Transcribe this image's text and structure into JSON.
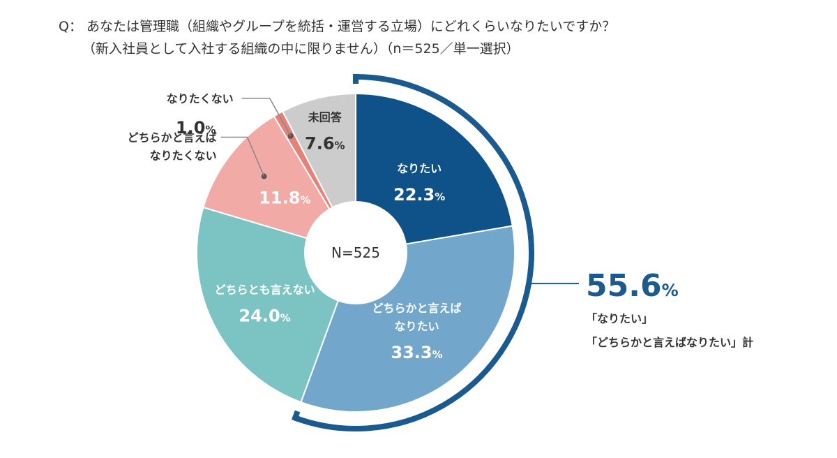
{
  "question": {
    "line1": "Q： あなたは管理職（組織やグループを統括・運営する立場）にどれくらいなりたいですか？",
    "line2": "（新入社員として入社する組織の中に限りません）（n＝525／単一選択）"
  },
  "chart_data": {
    "type": "pie",
    "center_label": "N=525",
    "unit": "%",
    "slices": [
      {
        "label_lines": [
          "なりたい"
        ],
        "value": 22.3,
        "value_text": "22.3",
        "color": "#0f5289"
      },
      {
        "label_lines": [
          "どちらかと言えば",
          "なりたい"
        ],
        "value": 33.3,
        "value_text": "33.3",
        "color": "#72a7cb"
      },
      {
        "label_lines": [
          "どちらとも言えない"
        ],
        "value": 24.0,
        "value_text": "24.0",
        "color": "#7cc3c4"
      },
      {
        "label_lines": [
          "どちらかと言えば",
          "なりたくない"
        ],
        "value": 11.8,
        "value_text": "11.8",
        "color": "#f2aaa7"
      },
      {
        "label_lines": [
          "なりたくない"
        ],
        "value": 1.0,
        "value_text": "1.0",
        "color": "#e8807a"
      },
      {
        "label_lines": [
          "未回答"
        ],
        "value": 7.6,
        "value_text": "7.6",
        "color": "#cccccc"
      }
    ],
    "summary": {
      "value_text": "55.6",
      "unit": "%",
      "label_line1": "「なりたい」",
      "label_line2": "「どちらかと言えばなりたい」計",
      "color": "#1a5a8e"
    }
  }
}
